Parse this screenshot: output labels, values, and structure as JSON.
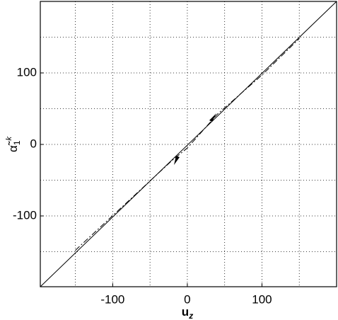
{
  "chart_data": {
    "type": "line",
    "xlabel": {
      "text": "u",
      "subscript": "z"
    },
    "ylabel": {
      "text": "α̃",
      "subscript": "1",
      "superscript": "k"
    },
    "xlim": [
      -197,
      200
    ],
    "ylim": [
      -199,
      200
    ],
    "xticks": [
      -100,
      0,
      100
    ],
    "yticks": [
      -100,
      0,
      100
    ],
    "xminor": [
      -150,
      -50,
      50,
      150
    ],
    "yminor": [
      -150,
      -50,
      50,
      150
    ],
    "grid": true,
    "series": [
      {
        "color": "#000000",
        "style": "solid",
        "x": [
          -197,
          200
        ],
        "values": [
          -199,
          200
        ]
      },
      {
        "color": "#000000",
        "style": "dashed",
        "x": [
          -150,
          -20,
          0,
          40,
          100,
          150
        ],
        "values": [
          -148,
          -22,
          -5,
          42,
          97,
          148
        ]
      }
    ]
  }
}
